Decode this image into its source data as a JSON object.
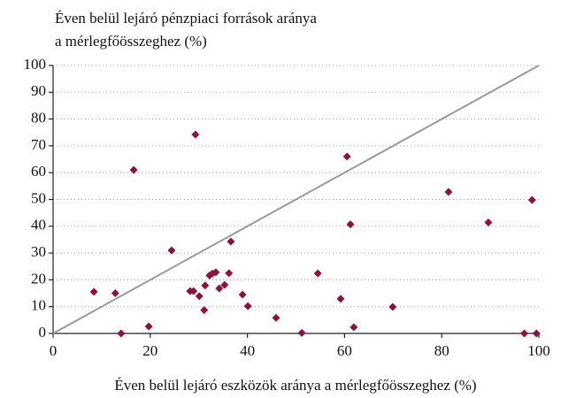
{
  "chart_data": {
    "type": "scatter",
    "title": "Éven belül lejáró pénzpiaci források aránya",
    "subtitle": "a mérlegfőösszeghez (%)",
    "x_label": "Éven belül lejáró eszközök aránya a mérlegfőösszeghez (%)",
    "x": [
      8.4,
      12.8,
      14.0,
      16.6,
      19.7,
      24.4,
      28.2,
      28.9,
      29.3,
      30.1,
      31.1,
      31.3,
      32.2,
      32.8,
      33.5,
      34.2,
      35.3,
      36.2,
      36.6,
      39.0,
      40.1,
      45.9,
      51.2,
      54.5,
      59.2,
      60.5,
      61.2,
      61.9,
      69.9,
      81.4,
      89.6,
      98.6,
      97.0,
      99.5
    ],
    "values": [
      15.5,
      15.0,
      0,
      61,
      2.6,
      31,
      15.8,
      15.8,
      74.2,
      13.9,
      8.7,
      17.9,
      21.6,
      22.3,
      22.8,
      16.8,
      18.1,
      22.5,
      34.3,
      14.5,
      10.2,
      5.8,
      0.2,
      22.4,
      12.9,
      66,
      40.7,
      2.3,
      9.9,
      52.8,
      41.4,
      49.8,
      0,
      0
    ],
    "color": "#8c1040",
    "xlim": [
      0,
      100
    ],
    "xticks": [
      0,
      20,
      40,
      60,
      80,
      100
    ],
    "ylim": [
      0,
      100
    ],
    "yticks": [
      0,
      10,
      20,
      30,
      40,
      50,
      60,
      70,
      80,
      90,
      100
    ],
    "grid": true,
    "diagonal": true
  }
}
